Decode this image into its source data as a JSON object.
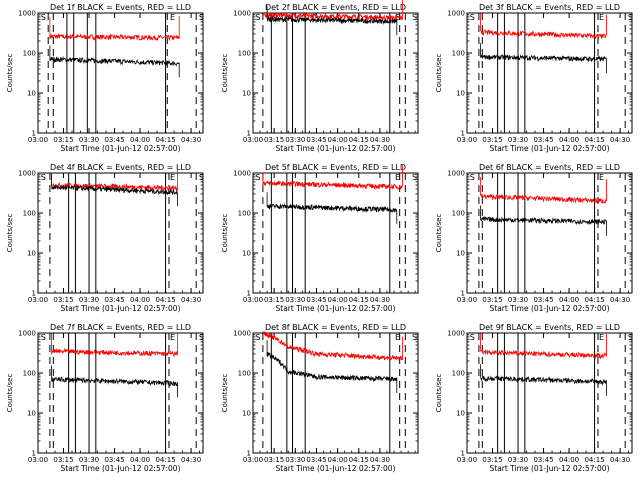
{
  "figure": {
    "xlabel": "Start Time (01-Jun-12 02:57:00)",
    "ylabel": "Counts/sec"
  },
  "colors": {
    "events": "#000000",
    "lld": "#ff0000",
    "axes": "#000000"
  },
  "chart_data": [
    {
      "type": "line",
      "title": "Det 1f BLACK = Events, RED = LLD",
      "yscale": "log",
      "ylim": [
        1,
        1000
      ],
      "xlim": [
        "03:00",
        "04:37"
      ],
      "xticks": [
        "03:00",
        "03:15",
        "03:30",
        "03:45",
        "04:00",
        "04:15",
        "04:30"
      ],
      "yticks": [
        "1",
        "10",
        "100",
        "1000"
      ],
      "events_x": [
        "03:07",
        "04:23"
      ],
      "events_y": [
        70,
        55
      ],
      "lld_x": [
        "03:07",
        "04:23"
      ],
      "lld_y": [
        260,
        240
      ],
      "dashed_x": [
        "03:06",
        "03:09",
        "04:16",
        "04:33"
      ],
      "solid_x": [
        "03:17",
        "03:21",
        "03:29",
        "03:34",
        "04:15"
      ],
      "markers": [
        {
          "x": "03:01",
          "label": "S"
        },
        {
          "x": "04:17",
          "label": "E"
        },
        {
          "x": "04:34",
          "label": "S"
        }
      ]
    },
    {
      "type": "line",
      "title": "Det 2f BLACK = Events, RED = LLD",
      "yscale": "log",
      "ylim": [
        1,
        1000
      ],
      "xlim": [
        "03:00",
        "04:57"
      ],
      "xticks": [
        "03:00",
        "03:15",
        "03:30",
        "03:45",
        "04:00",
        "04:15",
        "04:30"
      ],
      "yticks": [
        "1",
        "10",
        "100",
        "1000"
      ],
      "events_x": [
        "03:10",
        "04:42"
      ],
      "events_y": [
        700,
        620
      ],
      "lld_x": [
        "03:07",
        "04:46"
      ],
      "lld_y": [
        900,
        760
      ],
      "dashed_x": [
        "03:07",
        "04:44",
        "04:48"
      ],
      "solid_x": [
        "03:13",
        "03:24",
        "03:28",
        "03:37",
        "04:37"
      ],
      "markers": [
        {
          "x": "03:01",
          "label": "S"
        },
        {
          "x": "04:40",
          "label": "E"
        },
        {
          "x": "04:52",
          "label": "S"
        }
      ]
    },
    {
      "type": "line",
      "title": "Det 3f BLACK = Events, RED = LLD",
      "yscale": "log",
      "ylim": [
        1,
        1000
      ],
      "xlim": [
        "03:00",
        "04:37"
      ],
      "xticks": [
        "03:00",
        "03:15",
        "03:30",
        "03:45",
        "04:00",
        "04:15",
        "04:30"
      ],
      "yticks": [
        "1",
        "10",
        "100",
        "1000"
      ],
      "events_x": [
        "03:08",
        "04:22"
      ],
      "events_y": [
        80,
        70
      ],
      "lld_x": [
        "03:08",
        "04:22"
      ],
      "lld_y": [
        330,
        260
      ],
      "dashed_x": [
        "03:07",
        "03:09",
        "04:17",
        "04:33"
      ],
      "solid_x": [
        "03:18",
        "03:22",
        "03:30",
        "03:34",
        "04:15"
      ],
      "markers": [
        {
          "x": "03:01",
          "label": "S"
        },
        {
          "x": "04:17",
          "label": "E"
        },
        {
          "x": "04:34",
          "label": "S"
        }
      ]
    },
    {
      "type": "line",
      "title": "Det 4f BLACK = Events, RED = LLD",
      "yscale": "log",
      "ylim": [
        1,
        1000
      ],
      "xlim": [
        "03:00",
        "04:37"
      ],
      "xticks": [
        "03:00",
        "03:15",
        "03:30",
        "03:45",
        "04:00",
        "04:15",
        "04:30"
      ],
      "yticks": [
        "1",
        "10",
        "100",
        "1000"
      ],
      "events_x": [
        "03:08",
        "04:22"
      ],
      "events_y": [
        440,
        330
      ],
      "lld_x": [
        "03:08",
        "04:22"
      ],
      "lld_y": [
        500,
        420
      ],
      "dashed_x": [
        "03:07",
        "04:17",
        "04:33"
      ],
      "solid_x": [
        "03:18",
        "03:22",
        "03:30",
        "03:34",
        "04:15"
      ],
      "markers": [
        {
          "x": "03:01",
          "label": "S"
        },
        {
          "x": "04:17",
          "label": "E"
        },
        {
          "x": "04:34",
          "label": "S"
        }
      ]
    },
    {
      "type": "line",
      "title": "Det 5f BLACK = Events, RED = LLD",
      "yscale": "log",
      "ylim": [
        1,
        1000
      ],
      "xlim": [
        "03:00",
        "04:57"
      ],
      "xticks": [
        "03:00",
        "03:15",
        "03:30",
        "03:45",
        "04:00",
        "04:15",
        "04:30"
      ],
      "yticks": [
        "1",
        "10",
        "100",
        "1000"
      ],
      "events_x": [
        "03:10",
        "04:42"
      ],
      "events_y": [
        150,
        120
      ],
      "lld_x": [
        "03:07",
        "04:46"
      ],
      "lld_y": [
        560,
        450
      ],
      "dashed_x": [
        "03:07",
        "04:44",
        "04:48"
      ],
      "solid_x": [
        "03:13",
        "03:24",
        "03:28",
        "03:37",
        "04:37"
      ],
      "markers": [
        {
          "x": "03:01",
          "label": "S"
        },
        {
          "x": "04:40",
          "label": "E"
        },
        {
          "x": "04:52",
          "label": "S"
        }
      ]
    },
    {
      "type": "line",
      "title": "Det 6f BLACK = Events, RED = LLD",
      "yscale": "log",
      "ylim": [
        1,
        1000
      ],
      "xlim": [
        "03:00",
        "04:37"
      ],
      "xticks": [
        "03:00",
        "03:15",
        "03:30",
        "03:45",
        "04:00",
        "04:15",
        "04:30"
      ],
      "yticks": [
        "1",
        "10",
        "100",
        "1000"
      ],
      "events_x": [
        "03:08",
        "04:22"
      ],
      "events_y": [
        70,
        60
      ],
      "lld_x": [
        "03:08",
        "04:22"
      ],
      "lld_y": [
        260,
        200
      ],
      "dashed_x": [
        "03:07",
        "03:09",
        "04:17",
        "04:33"
      ],
      "solid_x": [
        "03:18",
        "03:22",
        "03:30",
        "03:34",
        "04:15"
      ],
      "markers": [
        {
          "x": "03:01",
          "label": "S"
        },
        {
          "x": "04:17",
          "label": "E"
        },
        {
          "x": "04:34",
          "label": "S"
        }
      ]
    },
    {
      "type": "line",
      "title": "Det 7f BLACK = Events, RED = LLD",
      "yscale": "log",
      "ylim": [
        1,
        1000
      ],
      "xlim": [
        "03:00",
        "04:37"
      ],
      "xticks": [
        "03:00",
        "03:15",
        "03:30",
        "03:45",
        "04:00",
        "04:15",
        "04:30"
      ],
      "yticks": [
        "1",
        "10",
        "100",
        "1000"
      ],
      "events_x": [
        "03:08",
        "04:22"
      ],
      "events_y": [
        70,
        55
      ],
      "lld_x": [
        "03:08",
        "04:22"
      ],
      "lld_y": [
        350,
        300
      ],
      "dashed_x": [
        "03:07",
        "03:09",
        "04:17",
        "04:33"
      ],
      "solid_x": [
        "03:18",
        "03:22",
        "03:30",
        "03:34",
        "04:15"
      ],
      "markers": [
        {
          "x": "03:01",
          "label": "S"
        },
        {
          "x": "04:17",
          "label": "E"
        },
        {
          "x": "04:34",
          "label": "S"
        }
      ]
    },
    {
      "type": "line",
      "title": "Det 8f BLACK = Events, RED = LLD",
      "yscale": "log",
      "ylim": [
        1,
        1000
      ],
      "xlim": [
        "03:00",
        "04:57"
      ],
      "xticks": [
        "03:00",
        "03:15",
        "03:30",
        "03:45",
        "04:00",
        "04:15",
        "04:30"
      ],
      "yticks": [
        "1",
        "10",
        "100",
        "1000"
      ],
      "events_x": [
        "03:10",
        "03:25",
        "03:45",
        "04:42"
      ],
      "events_y": [
        300,
        110,
        80,
        70
      ],
      "lld_x": [
        "03:07",
        "03:25",
        "03:45",
        "04:46"
      ],
      "lld_y": [
        1000,
        450,
        300,
        230
      ],
      "dashed_x": [
        "03:07",
        "04:44",
        "04:48"
      ],
      "solid_x": [
        "03:13",
        "03:24",
        "03:28",
        "03:37",
        "04:37"
      ],
      "markers": [
        {
          "x": "03:01",
          "label": "S"
        },
        {
          "x": "04:40",
          "label": "E"
        },
        {
          "x": "04:52",
          "label": "S"
        }
      ]
    },
    {
      "type": "line",
      "title": "Det 9f BLACK = Events, RED = LLD",
      "yscale": "log",
      "ylim": [
        1,
        1000
      ],
      "xlim": [
        "03:00",
        "04:37"
      ],
      "xticks": [
        "03:00",
        "03:15",
        "03:30",
        "03:45",
        "04:00",
        "04:15",
        "04:30"
      ],
      "yticks": [
        "1",
        "10",
        "100",
        "1000"
      ],
      "events_x": [
        "03:08",
        "04:22"
      ],
      "events_y": [
        75,
        60
      ],
      "lld_x": [
        "03:08",
        "04:22"
      ],
      "lld_y": [
        330,
        270
      ],
      "dashed_x": [
        "03:07",
        "03:09",
        "04:17",
        "04:33"
      ],
      "solid_x": [
        "03:18",
        "03:22",
        "03:30",
        "03:34",
        "04:15"
      ],
      "markers": [
        {
          "x": "03:01",
          "label": "S"
        },
        {
          "x": "04:17",
          "label": "E"
        },
        {
          "x": "04:34",
          "label": "S"
        }
      ]
    }
  ]
}
